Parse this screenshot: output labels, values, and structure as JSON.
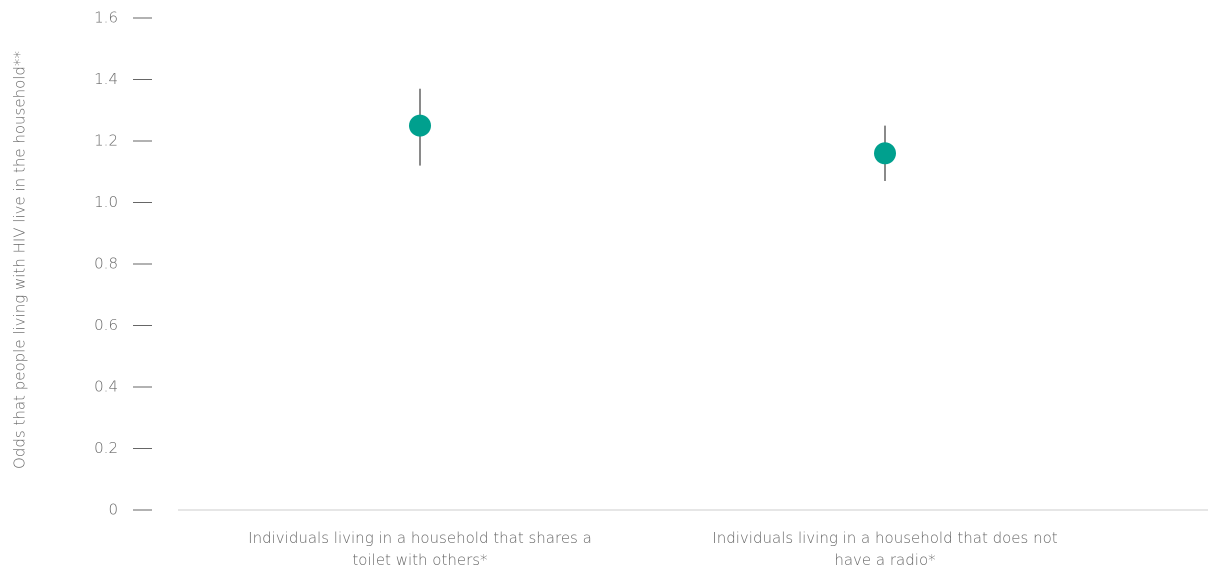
{
  "chart_data": {
    "type": "errorbar",
    "y_label": "Odds that people living with HIV live in the household**",
    "categories": [
      "Individuals living in a household that shares a toilet with others*",
      "Individuals living in a household that does not have a radio*"
    ],
    "values": [
      1.25,
      1.16
    ],
    "lower": [
      1.12,
      1.07
    ],
    "upper": [
      1.37,
      1.25
    ],
    "color": "#00a08e",
    "error_color": "#8a8a8a",
    "ylim": [
      0,
      1.6
    ],
    "yticks": [
      0,
      0.2,
      0.4,
      0.6,
      0.8,
      {
        "value": 1,
        "label": "1.0"
      },
      1.2,
      1.4,
      1.6
    ]
  }
}
